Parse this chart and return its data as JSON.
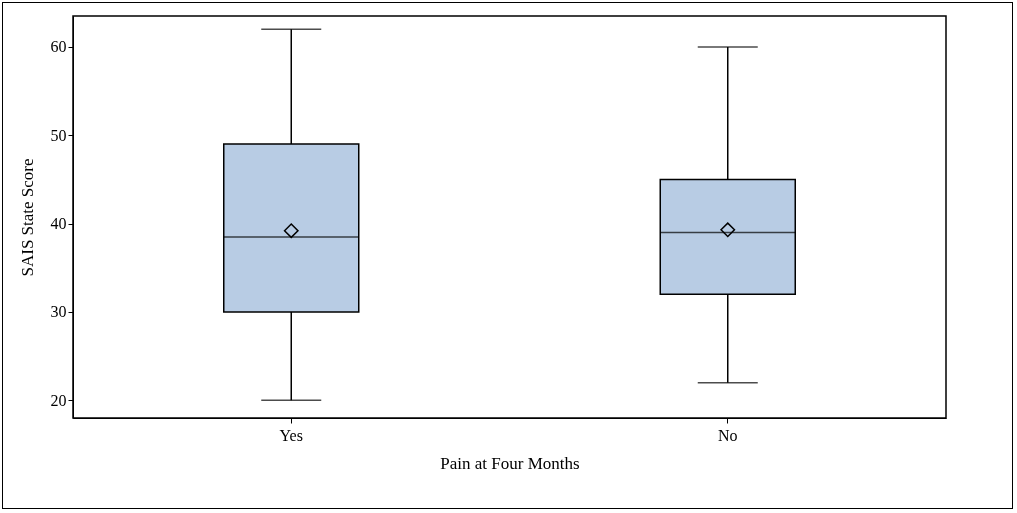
{
  "chart_data": {
    "type": "box",
    "xlabel": "Pain at Four Months",
    "ylabel": "SAIS State Score",
    "categories": [
      "Yes",
      "No"
    ],
    "color": "#b8cce4",
    "marker": "diamond",
    "boxes": [
      {
        "low": 20,
        "q1": 30,
        "median": 38.5,
        "q3": 49,
        "high": 62,
        "mean": 39.2
      },
      {
        "low": 22,
        "q1": 32,
        "median": 39,
        "q3": 45,
        "high": 60,
        "mean": 39.3
      }
    ],
    "ylim": [
      18,
      63.5
    ],
    "yticks": [
      20,
      30,
      40,
      50,
      60
    ]
  }
}
